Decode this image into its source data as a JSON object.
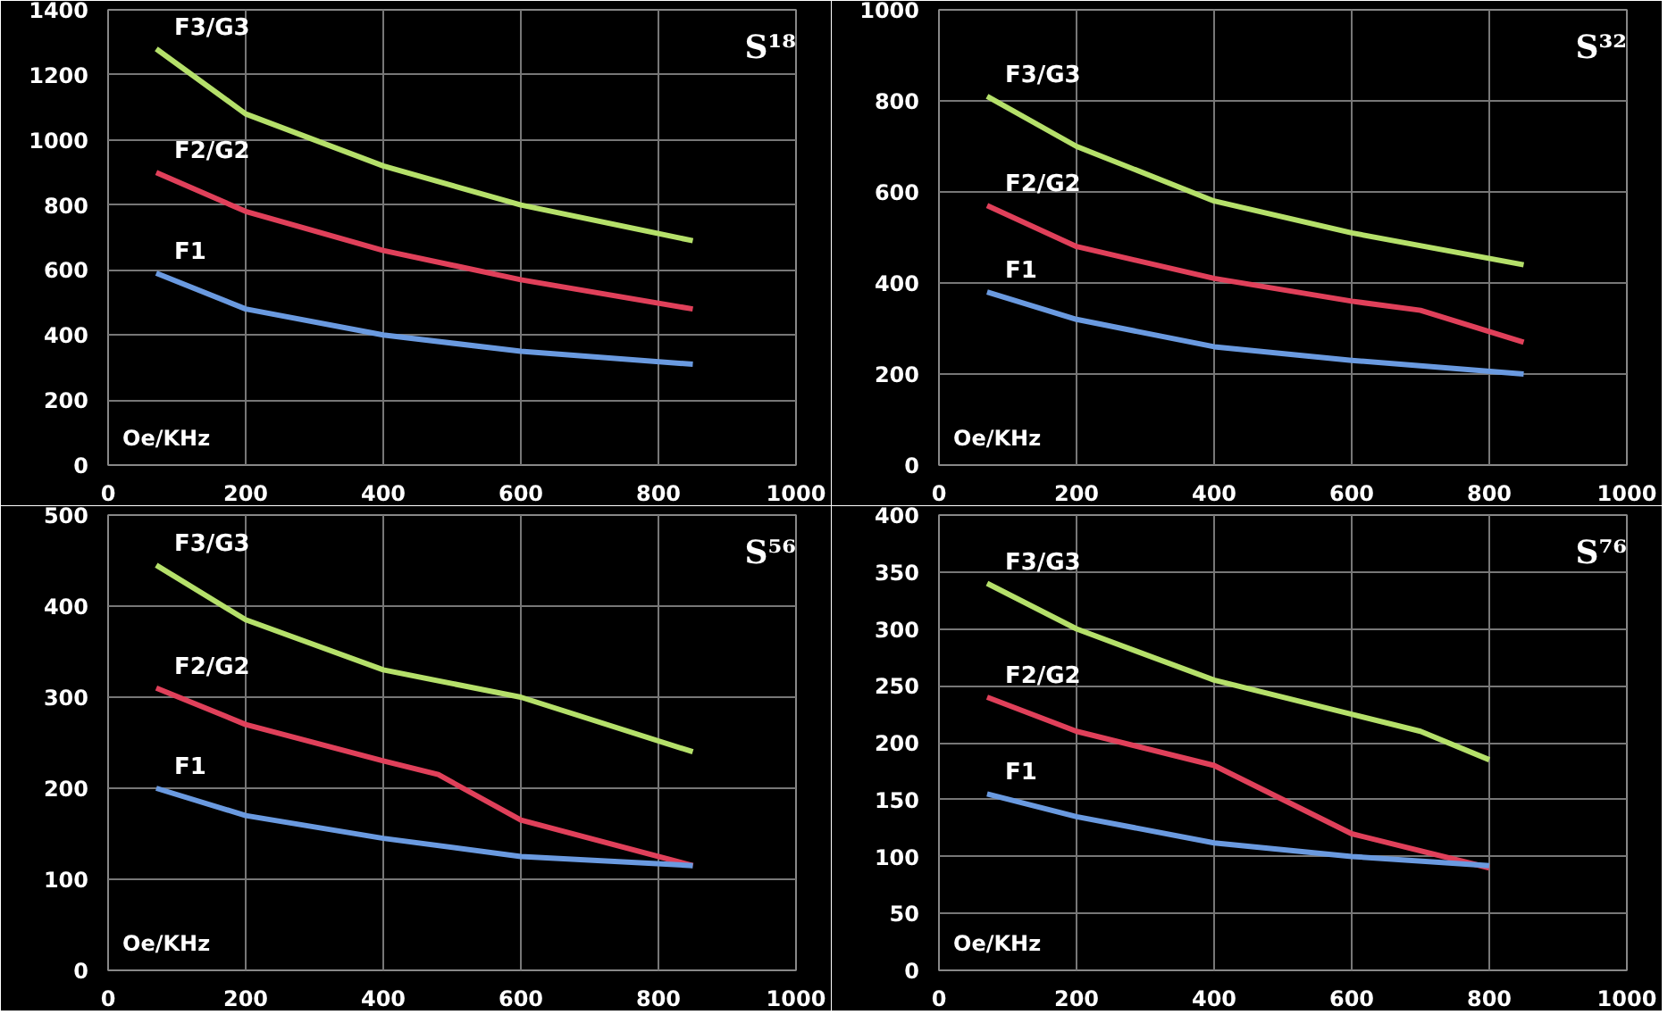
{
  "chart_data": [
    {
      "type": "line",
      "title": "S¹⁸",
      "xlim": [
        0,
        1000
      ],
      "xticks": [
        0,
        200,
        400,
        600,
        800,
        1000
      ],
      "ylim": [
        0,
        1400
      ],
      "yticks": [
        0,
        200,
        400,
        600,
        800,
        1000,
        1200,
        1400
      ],
      "grid": true,
      "legend": false,
      "annotations": [
        "Oe/KHz"
      ],
      "series": [
        {
          "name": "F3/G3",
          "color": "#b5e06a",
          "x": [
            70,
            200,
            400,
            600,
            850
          ],
          "values": [
            1280,
            1080,
            920,
            800,
            690
          ]
        },
        {
          "name": "F2/G2",
          "color": "#e0405a",
          "x": [
            70,
            200,
            400,
            600,
            850
          ],
          "values": [
            900,
            780,
            660,
            570,
            480
          ]
        },
        {
          "name": "F1",
          "color": "#6a9ae0",
          "x": [
            70,
            200,
            400,
            600,
            850
          ],
          "values": [
            590,
            480,
            400,
            350,
            310
          ]
        }
      ]
    },
    {
      "type": "line",
      "title": "S³²",
      "xlim": [
        0,
        1000
      ],
      "xticks": [
        0,
        200,
        400,
        600,
        800,
        1000
      ],
      "ylim": [
        0,
        1000
      ],
      "yticks": [
        0,
        200,
        400,
        600,
        800,
        1000
      ],
      "grid": true,
      "legend": false,
      "annotations": [
        "Oe/KHz"
      ],
      "series": [
        {
          "name": "F3/G3",
          "color": "#b5e06a",
          "x": [
            70,
            200,
            400,
            600,
            850
          ],
          "values": [
            810,
            700,
            580,
            510,
            440
          ]
        },
        {
          "name": "F2/G2",
          "color": "#e0405a",
          "x": [
            70,
            200,
            400,
            600,
            700,
            850
          ],
          "values": [
            570,
            480,
            410,
            360,
            340,
            270
          ]
        },
        {
          "name": "F1",
          "color": "#6a9ae0",
          "x": [
            70,
            200,
            400,
            600,
            850
          ],
          "values": [
            380,
            320,
            260,
            230,
            200
          ]
        }
      ]
    },
    {
      "type": "line",
      "title": "S⁵⁶",
      "xlim": [
        0,
        1000
      ],
      "xticks": [
        0,
        200,
        400,
        600,
        800,
        1000
      ],
      "ylim": [
        0,
        500
      ],
      "yticks": [
        0,
        100,
        200,
        300,
        400,
        500
      ],
      "grid": true,
      "legend": false,
      "annotations": [
        "Oe/KHz"
      ],
      "series": [
        {
          "name": "F3/G3",
          "color": "#b5e06a",
          "x": [
            70,
            200,
            400,
            600,
            850
          ],
          "values": [
            445,
            385,
            330,
            300,
            240
          ]
        },
        {
          "name": "F2/G2",
          "color": "#e0405a",
          "x": [
            70,
            200,
            400,
            480,
            600,
            850
          ],
          "values": [
            310,
            270,
            230,
            215,
            165,
            115
          ]
        },
        {
          "name": "F1",
          "color": "#6a9ae0",
          "x": [
            70,
            200,
            400,
            600,
            850
          ],
          "values": [
            200,
            170,
            145,
            125,
            115
          ]
        }
      ]
    },
    {
      "type": "line",
      "title": "S⁷⁶",
      "xlim": [
        0,
        1000
      ],
      "xticks": [
        0,
        200,
        400,
        600,
        800,
        1000
      ],
      "ylim": [
        0,
        400
      ],
      "yticks": [
        0,
        50,
        100,
        150,
        200,
        250,
        300,
        350,
        400
      ],
      "grid": true,
      "legend": false,
      "annotations": [
        "Oe/KHz"
      ],
      "series": [
        {
          "name": "F3/G3",
          "color": "#b5e06a",
          "x": [
            70,
            200,
            400,
            600,
            700,
            800
          ],
          "values": [
            340,
            300,
            255,
            225,
            210,
            185
          ]
        },
        {
          "name": "F2/G2",
          "color": "#e0405a",
          "x": [
            70,
            200,
            400,
            600,
            800
          ],
          "values": [
            240,
            210,
            180,
            120,
            90
          ]
        },
        {
          "name": "F1",
          "color": "#6a9ae0",
          "x": [
            70,
            200,
            400,
            600,
            800
          ],
          "values": [
            155,
            135,
            112,
            100,
            92
          ]
        }
      ]
    }
  ]
}
